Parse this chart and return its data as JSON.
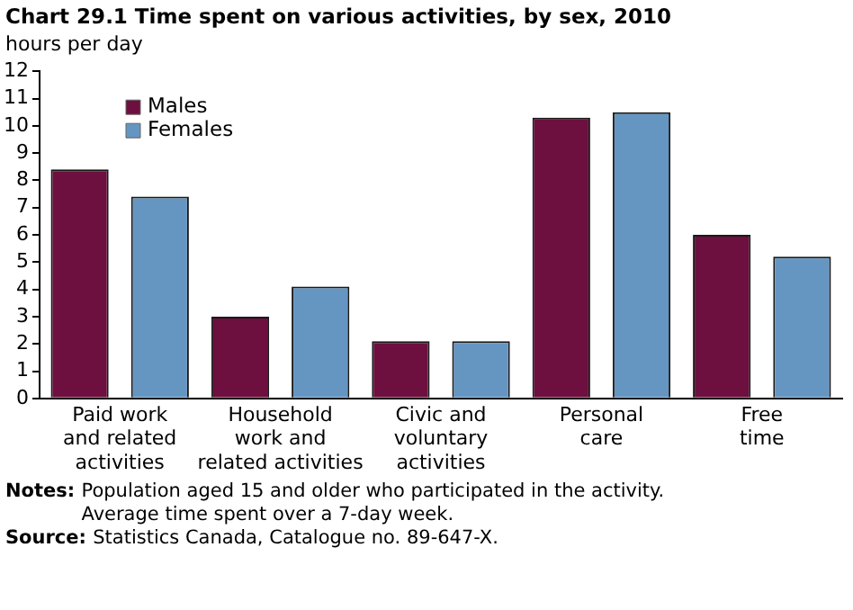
{
  "chart_data": {
    "type": "bar",
    "title": "Chart 29.1  Time spent on various activities, by sex, 2010",
    "ylabel": "hours per day",
    "categories": [
      "Paid work\nand related\nactivities",
      "Household\nwork and\nrelated activities",
      "Civic and\nvoluntary\nactivities",
      "Personal\ncare",
      "Free\ntime"
    ],
    "series": [
      {
        "name": "Males",
        "color": "#6d0f3f",
        "values": [
          8.4,
          3.0,
          2.1,
          10.3,
          6.0
        ]
      },
      {
        "name": "Females",
        "color": "#6596c2",
        "values": [
          7.4,
          4.1,
          2.1,
          10.5,
          5.2
        ]
      }
    ],
    "ylim": [
      0,
      12
    ],
    "yticks": [
      0,
      1,
      2,
      3,
      4,
      5,
      6,
      7,
      8,
      9,
      10,
      11,
      12
    ],
    "grid": false,
    "legend": "top left",
    "annotations": [
      "Notes: Population aged 15 and older who participated in the activity.\nAverage time spent over a 7-day week.",
      "Source: Statistics Canada, Catalogue no. 89-647-X."
    ]
  }
}
